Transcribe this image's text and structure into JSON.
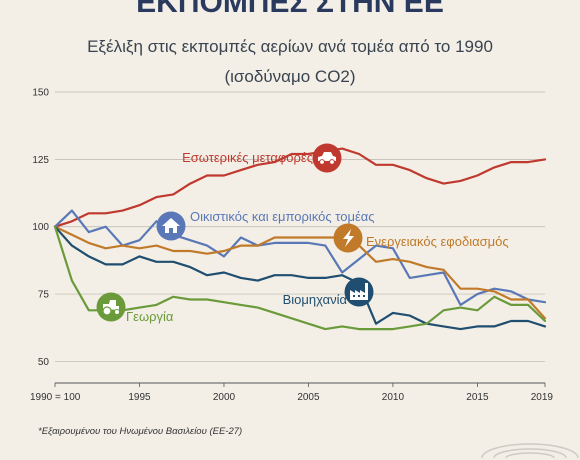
{
  "header": {
    "title": "ΕΚΠΟΜΠΕΣ ΣΤΗΝ ΕΕ",
    "subtitle_line1": "Εξέλιξη στις εκπομπές αερίων ανά τομέα από το 1990",
    "subtitle_line2": "(ισοδύναμο CO2)"
  },
  "footnote": "*Εξαιρουμένου του Ηνωμένου Βασιλείου (ΕΕ-27)",
  "chart_data": {
    "type": "line",
    "xlim": [
      1990,
      2019
    ],
    "ylim": [
      42,
      150
    ],
    "grid": true,
    "x_ticks": [
      {
        "value": 1990,
        "label": "1990 = 100"
      },
      {
        "value": 1995,
        "label": "1995"
      },
      {
        "value": 2000,
        "label": "2000"
      },
      {
        "value": 2005,
        "label": "2005"
      },
      {
        "value": 2010,
        "label": "2010"
      },
      {
        "value": 2015,
        "label": "2015"
      },
      {
        "value": 2019,
        "label": "2019"
      }
    ],
    "y_ticks": [
      50,
      75,
      100,
      125,
      150
    ],
    "x": [
      1990,
      1991,
      1992,
      1993,
      1994,
      1995,
      1996,
      1997,
      1998,
      1999,
      2000,
      2001,
      2002,
      2003,
      2004,
      2005,
      2006,
      2007,
      2008,
      2009,
      2010,
      2011,
      2012,
      2013,
      2014,
      2015,
      2016,
      2017,
      2018,
      2019
    ],
    "series": [
      {
        "name": "Εσωτερικές μεταφορές",
        "color": "#c0392f",
        "icon": "car-icon",
        "values": [
          100,
          102,
          105,
          105,
          106,
          108,
          111,
          112,
          116,
          119,
          119,
          121,
          123,
          124,
          127,
          127,
          128,
          129,
          127,
          123,
          123,
          121,
          118,
          116,
          117,
          119,
          122,
          124,
          124,
          125
        ]
      },
      {
        "name": "Οικιστικός και εμπορικός τομέας",
        "color": "#5a78b8",
        "icon": "house-icon",
        "values": [
          100,
          106,
          98,
          100,
          93,
          95,
          102,
          97,
          95,
          93,
          89,
          96,
          93,
          94,
          94,
          94,
          93,
          83,
          88,
          93,
          92,
          81,
          82,
          83,
          71,
          75,
          77,
          76,
          73,
          72
        ]
      },
      {
        "name": "Ενεργειακός εφοδιασμός",
        "color": "#c07a2a",
        "icon": "lightning-icon",
        "values": [
          100,
          97,
          94,
          92,
          93,
          92,
          93,
          91,
          91,
          90,
          91,
          93,
          93,
          96,
          96,
          96,
          96,
          96,
          93,
          87,
          88,
          87,
          85,
          84,
          77,
          77,
          76,
          73,
          73,
          66
        ]
      },
      {
        "name": "Βιομηχανία",
        "color": "#1f4e70",
        "icon": "factory-icon",
        "values": [
          100,
          93,
          89,
          86,
          86,
          89,
          87,
          87,
          85,
          82,
          83,
          81,
          80,
          82,
          82,
          81,
          81,
          82,
          79,
          64,
          68,
          67,
          64,
          63,
          62,
          63,
          63,
          65,
          65,
          63
        ]
      },
      {
        "name": "Γεωργία",
        "color": "#6a9a3a",
        "icon": "tractor-icon",
        "values": [
          100,
          80,
          69,
          69,
          69,
          70,
          71,
          74,
          73,
          73,
          72,
          71,
          70,
          68,
          66,
          64,
          62,
          63,
          62,
          62,
          62,
          63,
          64,
          69,
          70,
          69,
          74,
          71,
          71,
          65
        ]
      }
    ]
  }
}
